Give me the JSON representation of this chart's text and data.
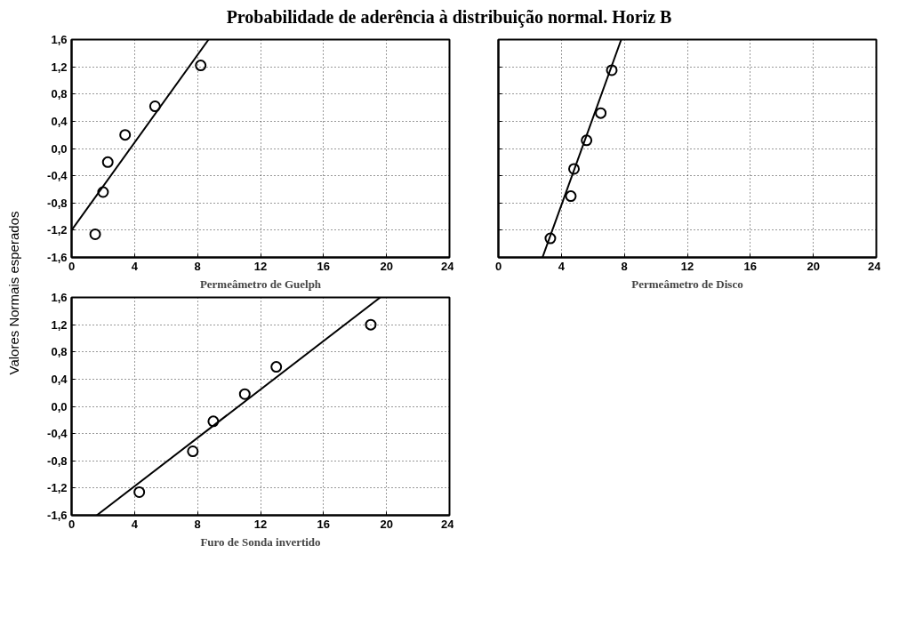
{
  "chart_data": [
    {
      "type": "scatter",
      "title": "Probabilidade de aderência à distribuição normal. Horiz B",
      "ylabel": "Valores Normais esperados",
      "xlabel": "Permeâmetro de Guelph",
      "xlim": [
        0,
        24
      ],
      "xticks": [
        0,
        4,
        8,
        12,
        16,
        20,
        24
      ],
      "ylim": [
        -1.6,
        1.6
      ],
      "yticks": [
        {
          "value": -1.6,
          "label": "-1,6"
        },
        {
          "value": -1.2,
          "label": "-1,2"
        },
        {
          "value": -0.8,
          "label": "-0,8"
        },
        {
          "value": -0.4,
          "label": "-0,4"
        },
        {
          "value": 0,
          "label": "0,0"
        },
        {
          "value": 0.4,
          "label": "0,4"
        },
        {
          "value": 0.8,
          "label": "0,8"
        },
        {
          "value": 1.2,
          "label": "1,2"
        },
        {
          "value": 1.6,
          "label": "1,6"
        }
      ],
      "grid": true,
      "series": [
        {
          "marker": "circle",
          "color": "#000000",
          "x": [
            1.5,
            2.0,
            2.3,
            3.4,
            5.3,
            8.2
          ],
          "values": [
            -1.26,
            -0.64,
            -0.2,
            0.2,
            0.62,
            1.22
          ]
        },
        {
          "type": "line",
          "color": "#000000",
          "x": [
            0,
            8.7
          ],
          "values": [
            -1.2,
            1.6
          ]
        }
      ]
    },
    {
      "type": "scatter",
      "xlabel": "Permeâmetro de Disco",
      "xlim": [
        0,
        24
      ],
      "xticks": [
        0,
        4,
        8,
        12,
        16,
        20,
        24
      ],
      "ylim": [
        -1.6,
        1.6
      ],
      "yticks": [
        {
          "value": -1.6,
          "label": null
        },
        {
          "value": -1.2,
          "label": null
        },
        {
          "value": -0.8,
          "label": null
        },
        {
          "value": -0.4,
          "label": null
        },
        {
          "value": 0,
          "label": null
        },
        {
          "value": 0.4,
          "label": null
        },
        {
          "value": 0.8,
          "label": null
        },
        {
          "value": 1.2,
          "label": null
        },
        {
          "value": 1.6,
          "label": null
        }
      ],
      "tick_labels": "x",
      "grid": true,
      "series": [
        {
          "marker": "circle",
          "color": "#000000",
          "x": [
            3.3,
            4.6,
            4.8,
            5.6,
            6.5,
            7.2
          ],
          "values": [
            -1.32,
            -0.7,
            -0.3,
            0.12,
            0.52,
            1.15
          ]
        },
        {
          "type": "line",
          "color": "#000000",
          "x": [
            2.8,
            7.8
          ],
          "values": [
            -1.6,
            1.6
          ]
        }
      ]
    },
    {
      "type": "scatter",
      "xlabel": "Furo de Sonda invertido",
      "xlim": [
        0,
        24
      ],
      "xticks": [
        0,
        4,
        8,
        12,
        16,
        20,
        24
      ],
      "ylim": [
        -1.6,
        1.6
      ],
      "yticks": [
        {
          "value": -1.6,
          "label": "-1,6"
        },
        {
          "value": -1.2,
          "label": "-1,2"
        },
        {
          "value": -0.8,
          "label": "-0,8"
        },
        {
          "value": -0.4,
          "label": "-0,4"
        },
        {
          "value": 0,
          "label": "0,0"
        },
        {
          "value": 0.4,
          "label": "0,4"
        },
        {
          "value": 0.8,
          "label": "0,8"
        },
        {
          "value": 1.2,
          "label": "1,2"
        },
        {
          "value": 1.6,
          "label": "1,6"
        }
      ],
      "grid": true,
      "series": [
        {
          "marker": "circle",
          "color": "#000000",
          "x": [
            4.3,
            7.7,
            9.0,
            11.0,
            13.0,
            19.0
          ],
          "values": [
            -1.26,
            -0.66,
            -0.22,
            0.18,
            0.58,
            1.2
          ]
        },
        {
          "type": "line",
          "color": "#000000",
          "x": [
            1.6,
            19.6
          ],
          "values": [
            -1.6,
            1.6
          ]
        }
      ]
    }
  ]
}
